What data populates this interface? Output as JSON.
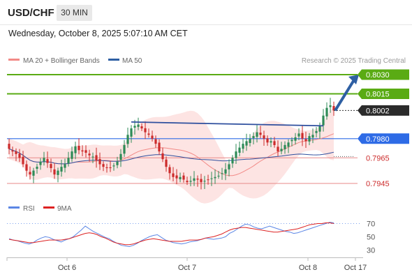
{
  "header": {
    "symbol": "USD/CHF",
    "timeframe": "30 MIN",
    "datetime": "Wednesday, October 8, 2025 5:07:10 AM CET"
  },
  "legend": {
    "items": [
      {
        "label": "MA 20 + Bollinger Bands",
        "color": "#f28a87"
      },
      {
        "label": "MA 50",
        "color": "#2e5fa3"
      }
    ],
    "credit": "Research © 2025 Trading Central"
  },
  "colors": {
    "bull_candle": "#2e8b57",
    "bear_candle": "#cc2b2b",
    "bollinger_fill": "#fde4e3",
    "resistance": "#5aab14",
    "pivot": "#2e6be6",
    "support": "#e88a8a",
    "trendline": "#2e4f9e",
    "arrow": "#2e5fa3",
    "rsi": "#5b86e5",
    "rsi_ma": "#dd2222"
  },
  "chart_data": [
    {
      "type": "candlestick",
      "title": "USD/CHF 30 MIN",
      "x_ticks": [
        "Oct 6",
        "Oct 7",
        "Oct 8",
        "Oct 17"
      ],
      "ylim": [
        0.7937,
        0.8039
      ],
      "current_price": {
        "label": "0.8002",
        "value": 0.8002
      },
      "levels": [
        {
          "label": "0.8030",
          "value": 0.803,
          "kind": "resistance"
        },
        {
          "label": "0.8015",
          "value": 0.8015,
          "kind": "resistance"
        },
        {
          "label": "0.7980",
          "value": 0.798,
          "kind": "pivot"
        },
        {
          "label": "0.7965",
          "value": 0.7965,
          "kind": "support"
        },
        {
          "label": "0.7945",
          "value": 0.7945,
          "kind": "support"
        }
      ],
      "series": [
        {
          "name": "MA 20 + Bollinger Bands"
        },
        {
          "name": "MA 50"
        }
      ],
      "trendline": {
        "from": 0.7993,
        "to": 0.799
      },
      "closes": [
        0.7972,
        0.797,
        0.7968,
        0.7965,
        0.796,
        0.7955,
        0.7952,
        0.7955,
        0.7958,
        0.7962,
        0.7965,
        0.7961,
        0.7957,
        0.7952,
        0.7955,
        0.7958,
        0.796,
        0.7965,
        0.797,
        0.7974,
        0.7971,
        0.797,
        0.7969,
        0.7967,
        0.7966,
        0.7963,
        0.796,
        0.7958,
        0.7957,
        0.7957,
        0.7959,
        0.7962,
        0.7968,
        0.7975,
        0.7983,
        0.7988,
        0.799,
        0.7991,
        0.7988,
        0.7985,
        0.7983,
        0.798,
        0.7976,
        0.797,
        0.7964,
        0.7958,
        0.7953,
        0.795,
        0.7949,
        0.795,
        0.7948,
        0.7946,
        0.7947,
        0.7949,
        0.7948,
        0.7946,
        0.7947,
        0.7948,
        0.7949,
        0.795,
        0.7951,
        0.7953,
        0.7956,
        0.796,
        0.7965,
        0.797,
        0.7973,
        0.7976,
        0.7978,
        0.798,
        0.7982,
        0.7985,
        0.7983,
        0.798,
        0.7977,
        0.7978,
        0.7975,
        0.797,
        0.7972,
        0.7975,
        0.7977,
        0.7979,
        0.7981,
        0.7984,
        0.798,
        0.7978,
        0.7982,
        0.7983,
        0.7986,
        0.799,
        0.7998,
        0.8004,
        0.8006,
        0.8002
      ]
    },
    {
      "type": "line",
      "title": "RSI",
      "series": [
        {
          "name": "RSI"
        },
        {
          "name": "9MA"
        }
      ],
      "y_ticks": [
        "70",
        "50",
        "30"
      ],
      "ylim": [
        25,
        80
      ],
      "rsi": [
        47,
        45,
        44,
        42,
        40,
        39,
        41,
        45,
        48,
        50,
        49,
        46,
        44,
        42,
        45,
        47,
        50,
        55,
        60,
        66,
        62,
        58,
        55,
        52,
        49,
        47,
        43,
        40,
        37,
        36,
        35,
        37,
        40,
        44,
        47,
        50,
        52,
        53,
        49,
        45,
        43,
        41,
        40,
        39,
        40,
        42,
        43,
        44,
        46,
        48,
        47,
        46,
        47,
        48,
        50,
        55,
        58,
        62,
        66,
        69,
        68,
        65,
        63,
        62,
        64,
        66,
        64,
        62,
        60,
        58,
        57,
        55,
        56,
        58,
        60,
        62,
        64,
        66,
        68,
        70,
        72,
        71
      ],
      "ma9": [
        46,
        45,
        44,
        43,
        42,
        41,
        41,
        42,
        43,
        44,
        45,
        45,
        45,
        45,
        46,
        47,
        49,
        51,
        53,
        55,
        56,
        55,
        53,
        50,
        48,
        45,
        42,
        40,
        39,
        38,
        38,
        39,
        41,
        43,
        45,
        46,
        47,
        46,
        45,
        44,
        43,
        43,
        43,
        43,
        44,
        45,
        45,
        45,
        46,
        48,
        49,
        50,
        52,
        54,
        57,
        60,
        62,
        63,
        64,
        64,
        63,
        62,
        61,
        60,
        59,
        58,
        57,
        57,
        58,
        59,
        60,
        61,
        62,
        64,
        66,
        68,
        69,
        70,
        70,
        71,
        71,
        70
      ]
    }
  ]
}
